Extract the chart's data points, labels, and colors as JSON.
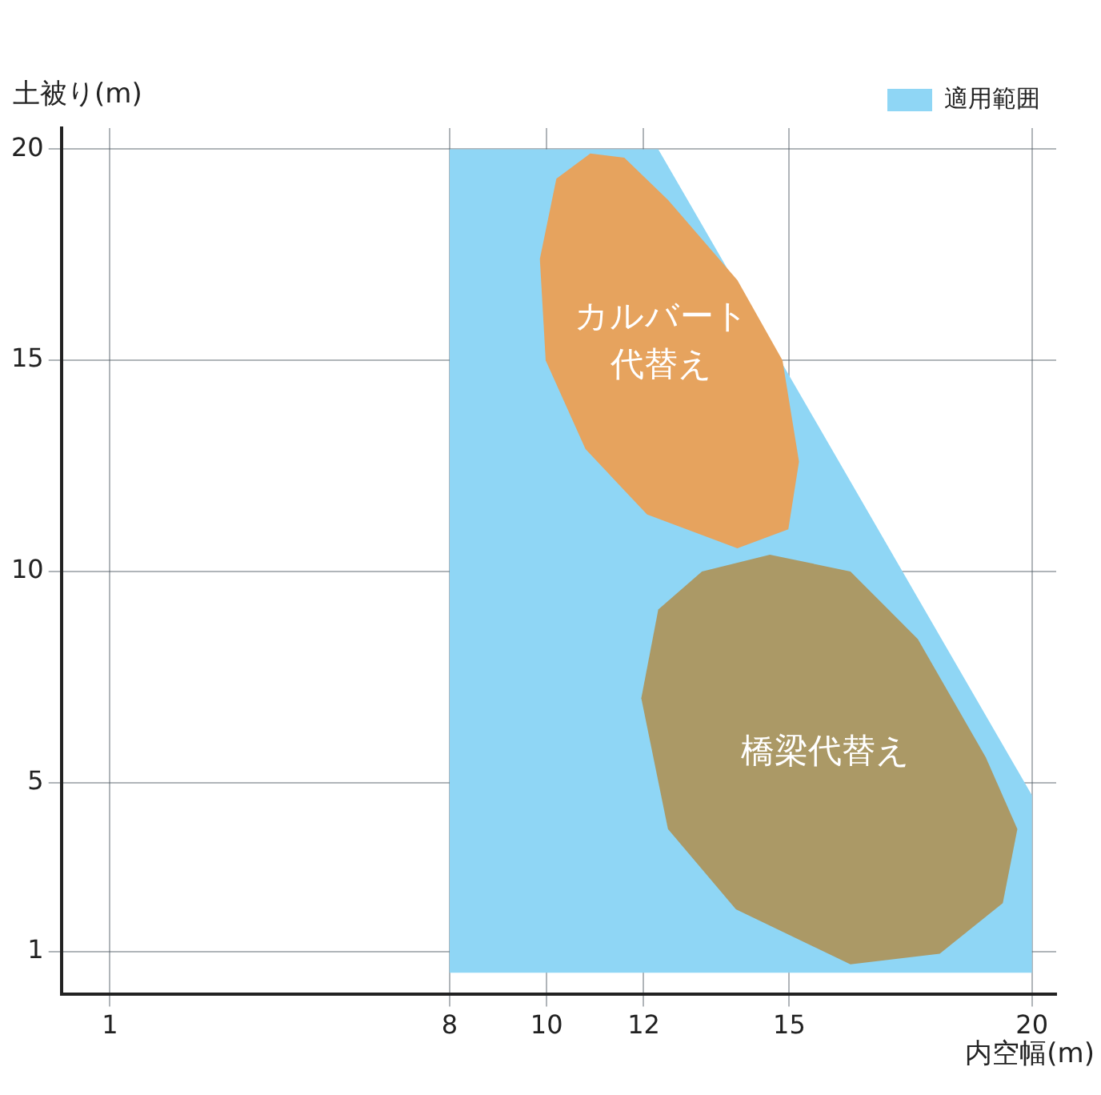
{
  "chart_data": {
    "type": "area",
    "xlabel": "内空幅(m)",
    "ylabel": "土被り(m)",
    "xlim": [
      0,
      20.5
    ],
    "xticks": [
      1,
      8,
      10,
      12,
      15,
      20
    ],
    "ylim": [
      0,
      20.5
    ],
    "yticks": [
      1,
      5,
      10,
      15,
      20
    ],
    "grid": true,
    "legend": "top right",
    "marker": "none",
    "series": [
      {
        "name": "適用範囲",
        "color": "#8fd6f5",
        "x": [
          8,
          8,
          12.3,
          20,
          20
        ],
        "values": [
          0.5,
          20,
          20,
          4.7,
          0.5
        ]
      },
      {
        "name": "カルバート代替え",
        "color": "#e6a35e",
        "x": [
          10.9,
          10.2,
          9.86,
          9.98,
          10.8,
          12.07,
          13.93,
          14.98,
          15.2,
          14.86,
          13.93,
          12.5,
          11.6
        ],
        "values": [
          19.9,
          19.3,
          17.4,
          15,
          12.9,
          11.35,
          10.55,
          11,
          12.6,
          15,
          16.9,
          18.8,
          19.8
        ]
      },
      {
        "name": "橋梁代替え",
        "color": "#ab9966",
        "x": [
          12.3,
          11.95,
          12.5,
          13.9,
          16.26,
          18.1,
          19.4,
          19.7,
          19.05,
          17.65,
          16.26,
          14.6,
          13.2
        ],
        "values": [
          9.1,
          7,
          3.9,
          2,
          0.7,
          0.95,
          2.15,
          3.9,
          5.6,
          8.4,
          10,
          10.4,
          10
        ]
      }
    ]
  }
}
